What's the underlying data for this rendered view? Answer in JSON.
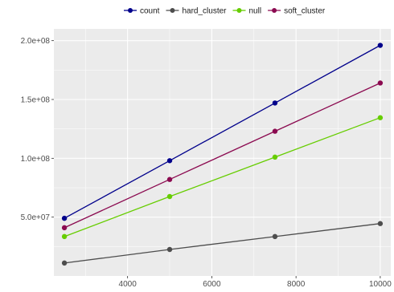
{
  "chart_data": {
    "type": "line",
    "title": "",
    "xlabel": "",
    "ylabel": "",
    "grid": true,
    "legend_position": "top",
    "x": [
      2500,
      5000,
      7500,
      10000
    ],
    "xlim": [
      2250,
      10250
    ],
    "ylim": [
      0,
      210000000
    ],
    "x_ticks": [
      4000,
      6000,
      8000,
      10000
    ],
    "x_tick_labels": [
      "4000",
      "6000",
      "8000",
      "10000"
    ],
    "y_ticks": [
      50000000,
      100000000,
      150000000,
      200000000
    ],
    "y_tick_labels": [
      "5.0e+07",
      "1.0e+08",
      "1.5e+08",
      "2.0e+08"
    ],
    "series": [
      {
        "name": "count",
        "color": "#00008b",
        "values": [
          49000000,
          98000000,
          147000000,
          196000000
        ]
      },
      {
        "name": "hard_cluster",
        "color": "#4d4d4d",
        "values": [
          11000000,
          22500000,
          33500000,
          44500000
        ]
      },
      {
        "name": "null",
        "color": "#66cd00",
        "values": [
          33500000,
          67500000,
          101000000,
          134500000
        ]
      },
      {
        "name": "soft_cluster",
        "color": "#8b0a50",
        "values": [
          41000000,
          82000000,
          123000000,
          164000000
        ]
      }
    ]
  }
}
